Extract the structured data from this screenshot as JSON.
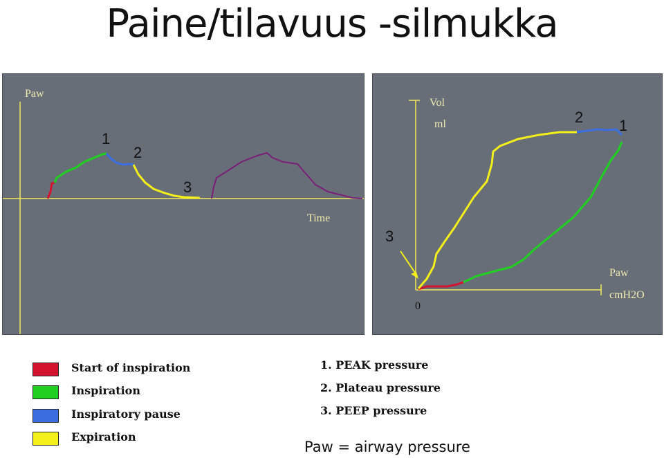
{
  "title": "Paine/tilavuus -silmukka",
  "colors": {
    "panel": "#686e78",
    "axis": "#f2e85a",
    "start_of_inspiration": "#d4142e",
    "inspiration": "#1fd020",
    "inspiratory_pause": "#3a6ee0",
    "expiration": "#f4f01a",
    "second_breath": "#7a1e78",
    "label_text": "#f0e9b0"
  },
  "left_chart": {
    "y_label": "Paw",
    "x_label": "Time",
    "point_labels": [
      "1",
      "2",
      "3"
    ]
  },
  "right_chart": {
    "y_label": "Vol",
    "y_unit": "ml",
    "x_label": "Paw",
    "x_unit": "cmH2O",
    "origin_label": "0",
    "point_labels": [
      "2",
      "1",
      "3"
    ]
  },
  "legend": [
    {
      "label": "Start of inspiration",
      "color": "#d4142e"
    },
    {
      "label": "Inspiration",
      "color": "#1fd020"
    },
    {
      "label": "Inspiratory pause",
      "color": "#3a6ee0"
    },
    {
      "label": "Expiration",
      "color": "#f4f01a"
    }
  ],
  "pressures": [
    "1. PEAK pressure",
    "2. Plateau pressure",
    "3. PEEP pressure"
  ],
  "footnote": "Paw = airway pressure"
}
